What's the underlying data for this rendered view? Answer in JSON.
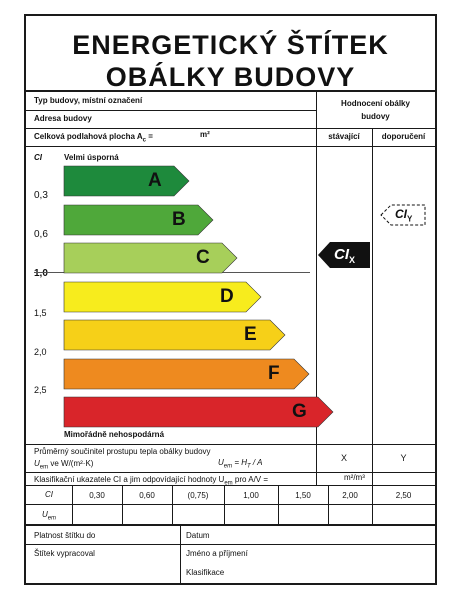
{
  "title": {
    "line1": "ENERGETICKÝ ŠTÍTEK",
    "line2": "OBÁLKY BUDOVY"
  },
  "info": {
    "building_type": "Typ budovy, místní označení",
    "address": "Adresa budovy",
    "floor_area": "Celková podlahová plocha A",
    "floor_area_sub": "c",
    "floor_area_eq": " =",
    "floor_area_unit": "m²"
  },
  "rating_header": {
    "title_line1": "Hodnocení obálky",
    "title_line2": "budovy",
    "current": "stávající",
    "recommended": "doporučení"
  },
  "scale": {
    "ci_label": "CI",
    "best_label": "Velmi úsporná",
    "worst_label": "Mimořádně nehospodárná",
    "ticks": [
      "0,3",
      "0,6",
      "1,0",
      "1,5",
      "2,0",
      "2,5"
    ]
  },
  "classes": [
    {
      "letter": "A",
      "color": "#1e8a3c"
    },
    {
      "letter": "B",
      "color": "#4fa83a"
    },
    {
      "letter": "C",
      "color": "#a7cf5a"
    },
    {
      "letter": "D",
      "color": "#f7ec1d"
    },
    {
      "letter": "E",
      "color": "#f6d018"
    },
    {
      "letter": "F",
      "color": "#ee8a1f"
    },
    {
      "letter": "G",
      "color": "#d9252a"
    }
  ],
  "markers": {
    "current": {
      "text": "CI",
      "sub": "X"
    },
    "recommended": {
      "text": "CI",
      "sub": "Y"
    }
  },
  "u_row": {
    "label_line1": "Průměrný součinitel prostupu tepla obálky budovy",
    "label_line2": "U",
    "label_line2_sub": "em",
    "label_line2_rest": " ve W/(m²·K)",
    "formula": "U",
    "formula_sub": "em",
    "formula_rest": " = H",
    "formula_sub2": "T",
    "formula_rest2": " / A",
    "current": "X",
    "recommended": "Y"
  },
  "classification": {
    "label": "Klasifikační ukazatele CI a jim odpovídající hodnoty U",
    "label_sub": "em",
    "label_rest": " pro A/V =",
    "unit": "m²/m³",
    "ci_row_label": "CI",
    "uem_row_label": "U",
    "uem_row_label_sub": "em",
    "values": [
      "0,30",
      "0,60",
      "(0,75)",
      "1,00",
      "1,50",
      "2,00",
      "2,50"
    ]
  },
  "footer": {
    "validity": "Platnost štítku do",
    "date": "Datum",
    "prepared_by": "Štítek vypracoval",
    "name": "Jméno a příjmení",
    "classification": "Klasifikace"
  }
}
